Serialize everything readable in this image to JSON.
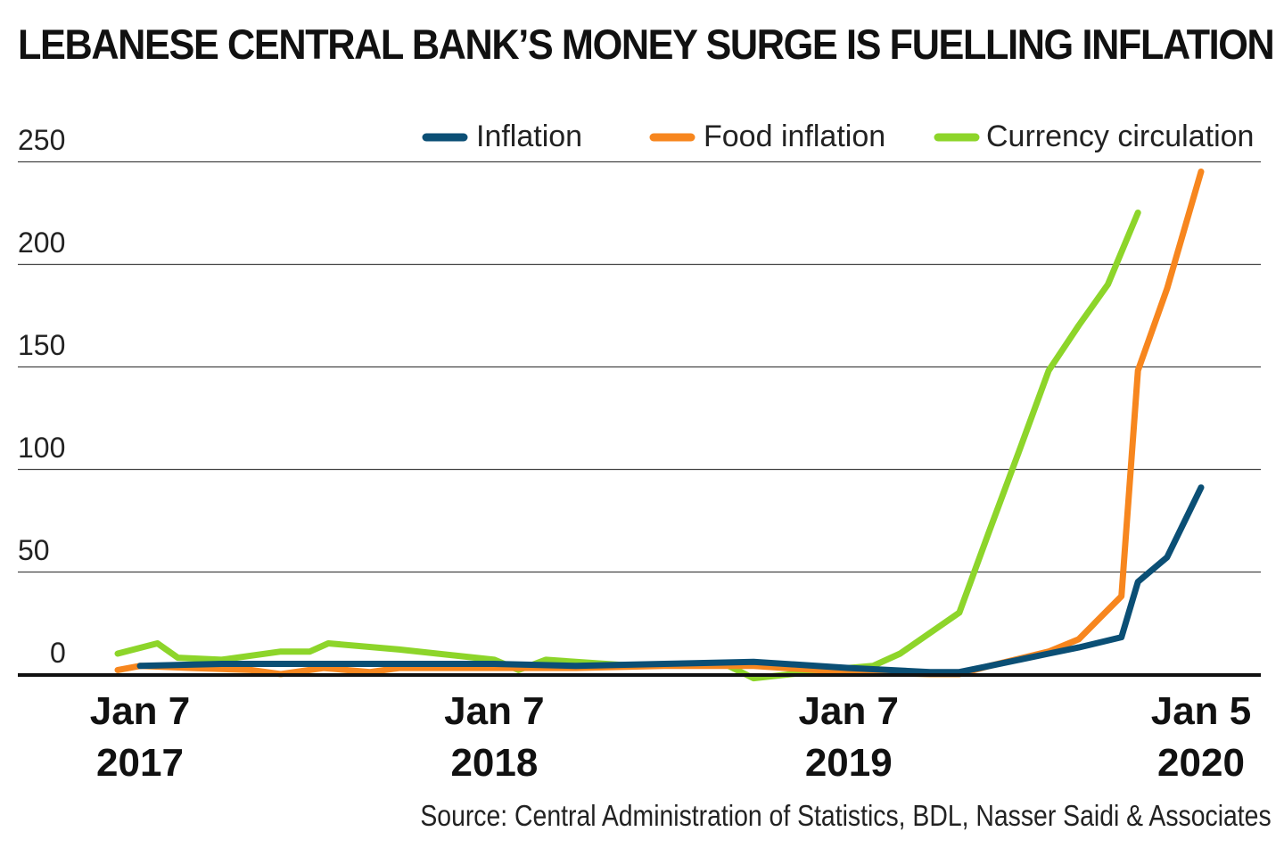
{
  "chart_data": {
    "type": "line",
    "title": "LEBANESE CENTRAL BANK’S MONEY SURGE IS FUELLING INFLATION (%)",
    "ylim": [
      0,
      250
    ],
    "yticks": [
      0,
      50,
      100,
      150,
      200,
      250
    ],
    "grid": true,
    "legend_position": "top-right",
    "x_tick_labels": [
      {
        "x": "2017-01-07",
        "line1": "Jan 7",
        "line2": "2017"
      },
      {
        "x": "2018-01-07",
        "line1": "Jan 7",
        "line2": "2018"
      },
      {
        "x": "2019-01-07",
        "line1": "Jan 7",
        "line2": "2019"
      },
      {
        "x": "2020-01-05",
        "line1": "Jan 5",
        "line2": "2020"
      }
    ],
    "series": [
      {
        "name": "Inflation",
        "color": "#0b4f75",
        "points": [
          [
            "2017-01-07",
            4
          ],
          [
            "2017-04-01",
            5
          ],
          [
            "2017-07-01",
            5
          ],
          [
            "2017-10-01",
            5
          ],
          [
            "2018-01-07",
            5
          ],
          [
            "2018-04-01",
            4
          ],
          [
            "2018-07-01",
            5
          ],
          [
            "2018-10-01",
            6
          ],
          [
            "2019-01-07",
            3
          ],
          [
            "2019-04-01",
            1
          ],
          [
            "2019-05-01",
            1
          ],
          [
            "2019-06-01",
            4
          ],
          [
            "2019-08-01",
            10
          ],
          [
            "2019-09-01",
            13
          ],
          [
            "2019-10-15",
            18
          ],
          [
            "2019-11-01",
            45
          ],
          [
            "2019-12-01",
            57
          ],
          [
            "2020-01-05",
            91
          ]
        ]
      },
      {
        "name": "Food inflation",
        "color": "#f7861e",
        "points": [
          [
            "2016-12-15",
            2
          ],
          [
            "2017-01-07",
            4
          ],
          [
            "2017-03-01",
            3
          ],
          [
            "2017-05-01",
            2
          ],
          [
            "2017-06-01",
            0
          ],
          [
            "2017-07-15",
            3
          ],
          [
            "2017-09-01",
            1
          ],
          [
            "2017-10-01",
            3
          ],
          [
            "2018-01-07",
            3
          ],
          [
            "2018-04-01",
            3
          ],
          [
            "2018-07-01",
            4
          ],
          [
            "2018-10-01",
            4
          ],
          [
            "2019-01-07",
            1
          ],
          [
            "2019-04-01",
            0
          ],
          [
            "2019-05-01",
            0
          ],
          [
            "2019-06-01",
            4
          ],
          [
            "2019-08-01",
            11
          ],
          [
            "2019-09-01",
            17
          ],
          [
            "2019-10-15",
            38
          ],
          [
            "2019-11-01",
            148
          ],
          [
            "2019-12-01",
            188
          ],
          [
            "2020-01-05",
            245
          ]
        ]
      },
      {
        "name": "Currency circulation",
        "color": "#8dd52a",
        "points": [
          [
            "2016-12-15",
            10
          ],
          [
            "2017-01-25",
            15
          ],
          [
            "2017-02-15",
            8
          ],
          [
            "2017-04-01",
            7
          ],
          [
            "2017-06-01",
            11
          ],
          [
            "2017-07-01",
            11
          ],
          [
            "2017-07-20",
            15
          ],
          [
            "2017-10-01",
            12
          ],
          [
            "2018-01-07",
            7
          ],
          [
            "2018-02-01",
            2
          ],
          [
            "2018-03-01",
            7
          ],
          [
            "2018-06-01",
            4
          ],
          [
            "2018-09-01",
            5
          ],
          [
            "2018-10-01",
            -2
          ],
          [
            "2019-01-07",
            3
          ],
          [
            "2019-02-01",
            4
          ],
          [
            "2019-03-01",
            10
          ],
          [
            "2019-05-01",
            30
          ],
          [
            "2019-06-01",
            70
          ],
          [
            "2019-07-01",
            108
          ],
          [
            "2019-08-01",
            148
          ],
          [
            "2019-09-01",
            170
          ],
          [
            "2019-10-01",
            190
          ],
          [
            "2019-11-01",
            225
          ]
        ]
      }
    ],
    "source": "Source: Central Administration of Statistics, BDL, Nasser Saidi & Associates"
  }
}
